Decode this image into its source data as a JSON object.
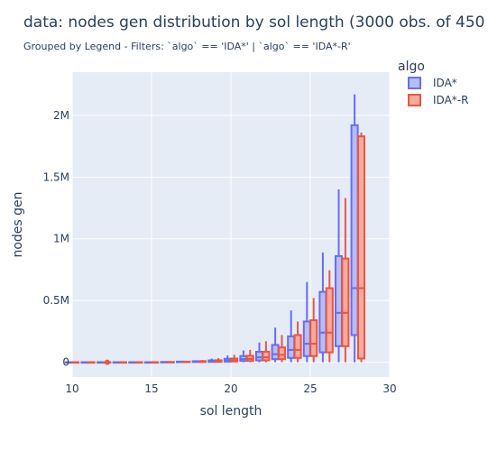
{
  "chart_data": {
    "type": "box",
    "title": "data: nodes gen distribution by sol length (3000 obs. of 450",
    "subtitle": "Grouped by Legend - Filters: `algo` == 'IDA*' | `algo` == 'IDA*-R'",
    "xlabel": "sol length",
    "ylabel": "nodes gen",
    "xlim": [
      10,
      30
    ],
    "ylim": [
      -120000,
      2350000
    ],
    "x_ticks": [
      "10",
      "15",
      "20",
      "25",
      "30"
    ],
    "y_ticks": [
      {
        "value": 0,
        "label": "0"
      },
      {
        "value": 500000,
        "label": "0.5M"
      },
      {
        "value": 1000000,
        "label": "1M"
      },
      {
        "value": 1500000,
        "label": "1.5M"
      },
      {
        "value": 2000000,
        "label": "2M"
      }
    ],
    "legend_title": "algo",
    "legend_position": "right",
    "series": [
      {
        "name": "IDA*",
        "color": "#636efa",
        "fill": "#b8bdf8",
        "boxes": [
          {
            "x": 10,
            "min": 0,
            "q1": 0,
            "median": 0,
            "q3": 0,
            "max": 0
          },
          {
            "x": 11,
            "min": 0,
            "q1": 0,
            "median": 0,
            "q3": 0,
            "max": 0
          },
          {
            "x": 12,
            "min": 0,
            "q1": 0,
            "median": 0,
            "q3": 0,
            "max": 0
          },
          {
            "x": 13,
            "min": 0,
            "q1": 0,
            "median": 0,
            "q3": 0,
            "max": 0
          },
          {
            "x": 14,
            "min": 0,
            "q1": 0,
            "median": 0,
            "q3": 0,
            "max": 0
          },
          {
            "x": 15,
            "min": 0,
            "q1": 0,
            "median": 0,
            "q3": 0,
            "max": 0
          },
          {
            "x": 16,
            "min": 0,
            "q1": 0,
            "median": 1000,
            "q3": 2000,
            "max": 4000
          },
          {
            "x": 17,
            "min": 0,
            "q1": 1000,
            "median": 2000,
            "q3": 5000,
            "max": 9000
          },
          {
            "x": 18,
            "min": 0,
            "q1": 2000,
            "median": 4000,
            "q3": 8000,
            "max": 16000
          },
          {
            "x": 19,
            "min": 0,
            "q1": 3000,
            "median": 8000,
            "q3": 15000,
            "max": 30000
          },
          {
            "x": 20,
            "min": 0,
            "q1": 5000,
            "median": 14000,
            "q3": 28000,
            "max": 55000
          },
          {
            "x": 21,
            "min": 0,
            "q1": 10000,
            "median": 25000,
            "q3": 50000,
            "max": 95000
          },
          {
            "x": 22,
            "min": 0,
            "q1": 15000,
            "median": 40000,
            "q3": 85000,
            "max": 160000
          },
          {
            "x": 23,
            "min": 0,
            "q1": 25000,
            "median": 65000,
            "q3": 140000,
            "max": 280000
          },
          {
            "x": 24,
            "min": 0,
            "q1": 35000,
            "median": 100000,
            "q3": 210000,
            "max": 420000
          },
          {
            "x": 25,
            "min": 0,
            "q1": 50000,
            "median": 150000,
            "q3": 330000,
            "max": 650000
          },
          {
            "x": 26,
            "min": 0,
            "q1": 80000,
            "median": 240000,
            "q3": 570000,
            "max": 890000
          },
          {
            "x": 27,
            "min": 0,
            "q1": 130000,
            "median": 400000,
            "q3": 860000,
            "max": 1400000
          },
          {
            "x": 28,
            "min": 0,
            "q1": 220000,
            "median": 600000,
            "q3": 1920000,
            "max": 2170000
          }
        ]
      },
      {
        "name": "IDA*-R",
        "color": "#ef553b",
        "fill": "#f6ab9d",
        "boxes": [
          {
            "x": 10,
            "min": 0,
            "q1": 0,
            "median": 0,
            "q3": 0,
            "max": 0
          },
          {
            "x": 11,
            "min": 0,
            "q1": 0,
            "median": 0,
            "q3": 0,
            "max": 0
          },
          {
            "x": 12,
            "min": 0,
            "q1": 0,
            "median": 0,
            "q3": 0,
            "max": 0
          },
          {
            "x": 13,
            "min": 0,
            "q1": 0,
            "median": 0,
            "q3": 0,
            "max": 0
          },
          {
            "x": 14,
            "min": 0,
            "q1": 0,
            "median": 0,
            "q3": 0,
            "max": 0
          },
          {
            "x": 15,
            "min": 0,
            "q1": 0,
            "median": 0,
            "q3": 0,
            "max": 0
          },
          {
            "x": 16,
            "min": 0,
            "q1": 0,
            "median": 1000,
            "q3": 2000,
            "max": 4000
          },
          {
            "x": 17,
            "min": 0,
            "q1": 1000,
            "median": 2000,
            "q3": 5000,
            "max": 10000
          },
          {
            "x": 18,
            "min": 0,
            "q1": 2000,
            "median": 4000,
            "q3": 9000,
            "max": 18000
          },
          {
            "x": 19,
            "min": 0,
            "q1": 3000,
            "median": 8000,
            "q3": 16000,
            "max": 33000
          },
          {
            "x": 20,
            "min": 0,
            "q1": 6000,
            "median": 15000,
            "q3": 30000,
            "max": 60000
          },
          {
            "x": 21,
            "min": 0,
            "q1": 10000,
            "median": 26000,
            "q3": 52000,
            "max": 100000
          },
          {
            "x": 22,
            "min": 0,
            "q1": 15000,
            "median": 40000,
            "q3": 85000,
            "max": 170000
          },
          {
            "x": 23,
            "min": 0,
            "q1": 25000,
            "median": 60000,
            "q3": 120000,
            "max": 220000
          },
          {
            "x": 24,
            "min": 0,
            "q1": 35000,
            "median": 100000,
            "q3": 220000,
            "max": 330000
          },
          {
            "x": 25,
            "min": 0,
            "q1": 50000,
            "median": 150000,
            "q3": 340000,
            "max": 520000
          },
          {
            "x": 26,
            "min": 0,
            "q1": 80000,
            "median": 240000,
            "q3": 600000,
            "max": 745000
          },
          {
            "x": 27,
            "min": 0,
            "q1": 130000,
            "median": 400000,
            "q3": 840000,
            "max": 1330000
          },
          {
            "x": 28,
            "min": 0,
            "q1": 30000,
            "median": 600000,
            "q3": 1830000,
            "max": 1860000
          }
        ]
      }
    ],
    "outliers": [
      {
        "series": "IDA*-R",
        "x": 12,
        "y": 0
      }
    ]
  }
}
